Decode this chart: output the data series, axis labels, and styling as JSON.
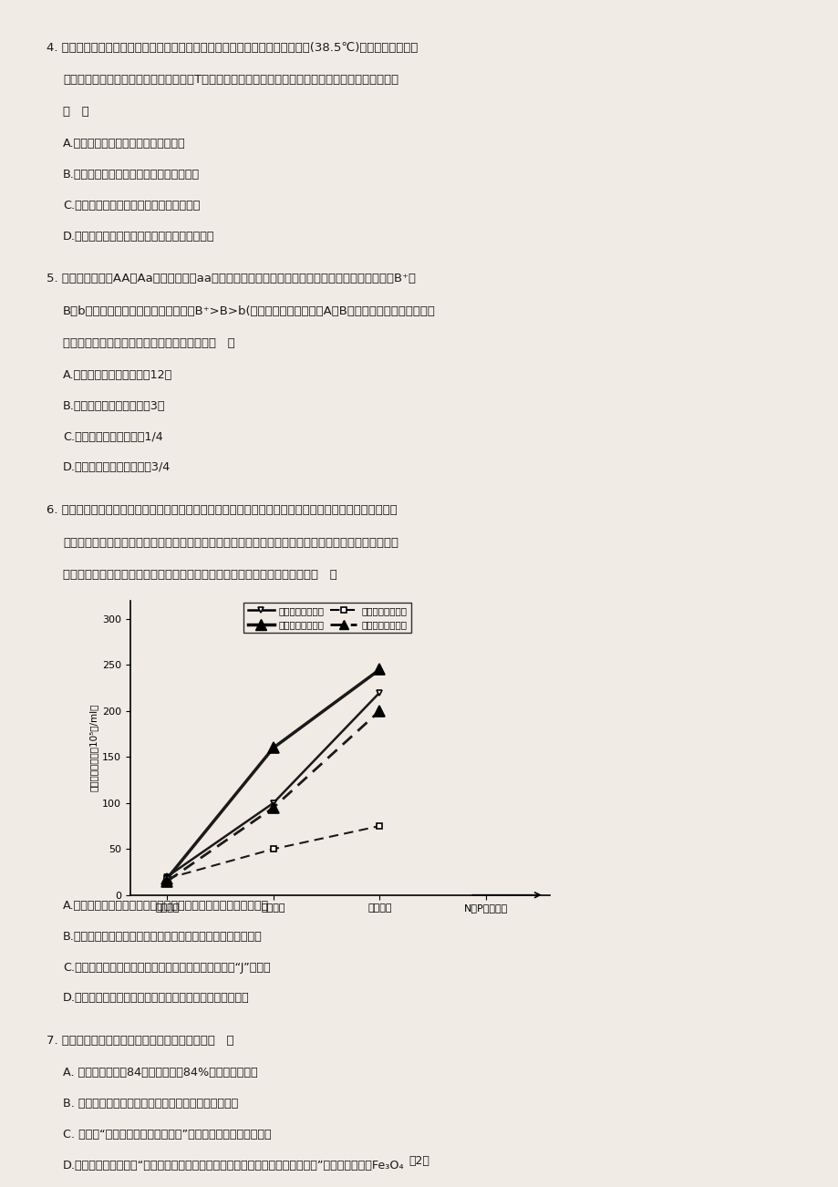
{
  "background_color": "#f0ebe5",
  "page_width": 9.2,
  "page_height": 13.02,
  "text_color": "#1a1a1a",
  "footer_text": "第2页",
  "chart": {
    "yticks": [
      0,
      50,
      100,
      150,
      200,
      250,
      300
    ],
    "x_labels": [
      "低氮磷组",
      "中氮磷组",
      "高氮磷组",
      "N、P质量浓度"
    ],
    "series": [
      {
        "label": "单独培养的小球藻",
        "x": [
          0,
          1,
          2
        ],
        "y": [
          20,
          100,
          220
        ],
        "solid": true,
        "big_marker": false
      },
      {
        "label": "单独培养的鱼腾藻",
        "x": [
          0,
          1,
          2
        ],
        "y": [
          18,
          160,
          245
        ],
        "solid": true,
        "big_marker": true
      },
      {
        "label": "共同培养的小球藻",
        "x": [
          0,
          1,
          2
        ],
        "y": [
          18,
          50,
          75
        ],
        "solid": false,
        "big_marker": false
      },
      {
        "label": "共同培养的鱼腾藻",
        "x": [
          0,
          1,
          2
        ],
        "y": [
          15,
          95,
          200
        ],
        "solid": false,
        "big_marker": true
      }
    ]
  }
}
